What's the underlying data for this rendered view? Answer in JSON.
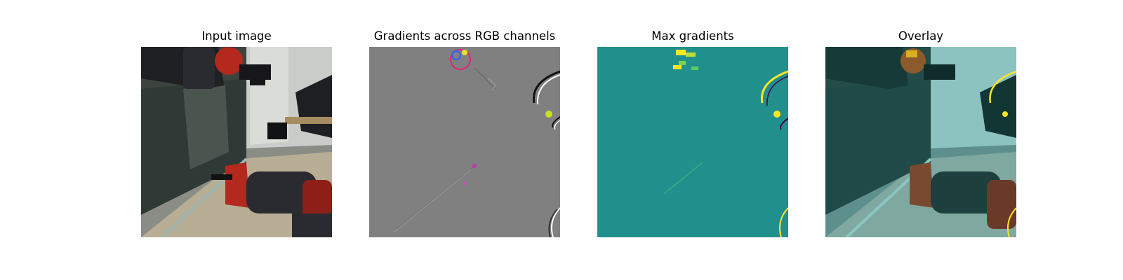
{
  "figure": {
    "panels": [
      {
        "title": "Input image"
      },
      {
        "title": "Gradients across RGB channels"
      },
      {
        "title": "Max gradients"
      },
      {
        "title": "Overlay"
      }
    ]
  },
  "colors": {
    "gradient_neutral": "#808080",
    "max_gradient_background": "#21908d",
    "highlight_yellow": "#fde725",
    "robot_red": "#b4281e",
    "robot_dark": "#2a2a30"
  }
}
